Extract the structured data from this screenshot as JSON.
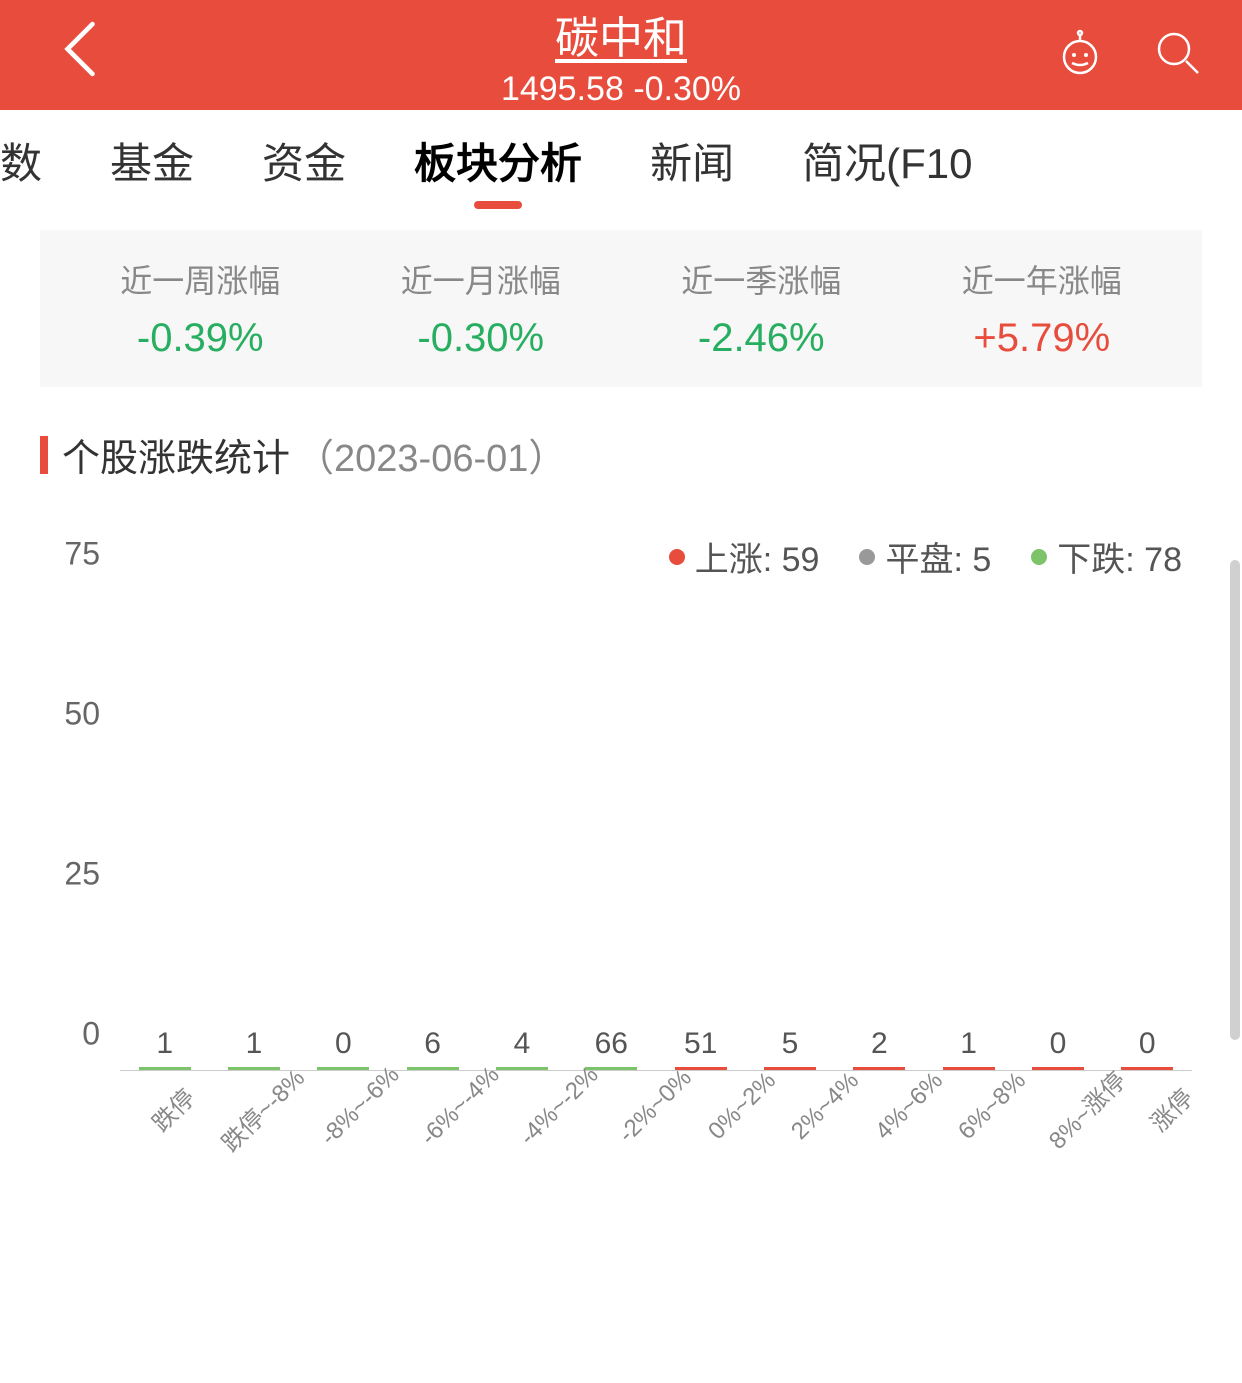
{
  "header": {
    "title": "碳中和",
    "price": "1495.58",
    "change": "-0.30%",
    "bg_color": "#e84c3d"
  },
  "tabs": {
    "items": [
      {
        "label": "数",
        "partial": true
      },
      {
        "label": "基金"
      },
      {
        "label": "资金"
      },
      {
        "label": "板块分析",
        "active": true
      },
      {
        "label": "新闻"
      },
      {
        "label": "简况(F10"
      }
    ]
  },
  "stats": [
    {
      "label": "近一周涨幅",
      "value": "-0.39%",
      "dir": "neg"
    },
    {
      "label": "近一月涨幅",
      "value": "-0.30%",
      "dir": "neg"
    },
    {
      "label": "近一季涨幅",
      "value": "-2.46%",
      "dir": "neg"
    },
    {
      "label": "近一年涨幅",
      "value": "+5.79%",
      "dir": "pos"
    }
  ],
  "section": {
    "title": "个股涨跌统计",
    "date": "（2023-06-01）"
  },
  "legend": [
    {
      "label": "上涨",
      "value": "59",
      "color": "#e84c3d"
    },
    {
      "label": "平盘",
      "value": "5",
      "color": "#999999"
    },
    {
      "label": "下跌",
      "value": "78",
      "color": "#7cc36a"
    }
  ],
  "chart": {
    "type": "bar",
    "ylim": [
      0,
      75
    ],
    "yticks": [
      0,
      25,
      50,
      75
    ],
    "ytick_font": 32,
    "barlabel_font": 30,
    "xlabel_font": 24,
    "colors": {
      "down": "#7cc36a",
      "up": "#e84c3d",
      "axis": "#cccccc",
      "text": "#666666"
    },
    "bars": [
      {
        "label": "跌停",
        "value": 1,
        "dir": "down"
      },
      {
        "label": "跌停~-8%",
        "value": 1,
        "dir": "down"
      },
      {
        "label": "-8%~-6%",
        "value": 0,
        "dir": "down"
      },
      {
        "label": "-6%~-4%",
        "value": 6,
        "dir": "down"
      },
      {
        "label": "-4%~-2%",
        "value": 4,
        "dir": "down"
      },
      {
        "label": "-2%~0%",
        "value": 66,
        "dir": "down"
      },
      {
        "label": "0%~2%",
        "value": 51,
        "dir": "up"
      },
      {
        "label": "2%~4%",
        "value": 5,
        "dir": "up"
      },
      {
        "label": "4%~6%",
        "value": 2,
        "dir": "up"
      },
      {
        "label": "6%~8%",
        "value": 1,
        "dir": "up"
      },
      {
        "label": "8%~涨停",
        "value": 0,
        "dir": "up"
      },
      {
        "label": "涨停",
        "value": 0,
        "dir": "up"
      }
    ]
  }
}
